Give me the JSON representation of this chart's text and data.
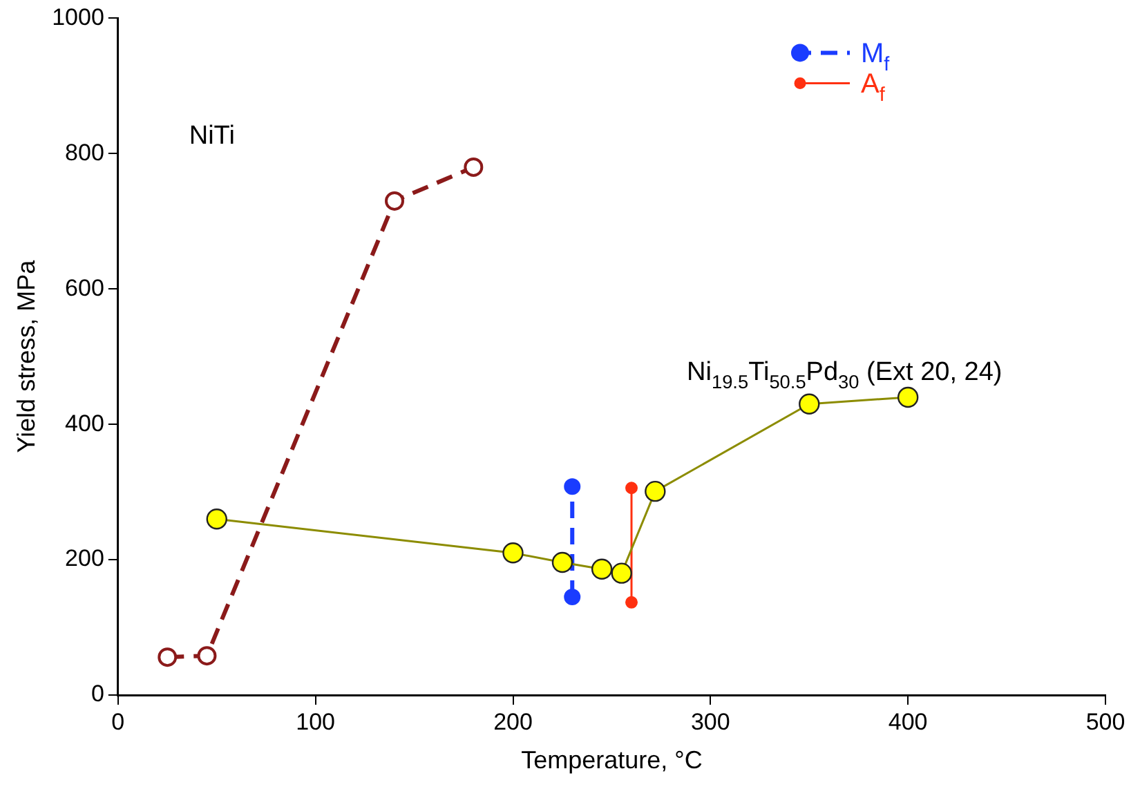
{
  "chart_data": {
    "type": "line",
    "xlabel": "Temperature, °C",
    "ylabel": "Yield stress, MPa",
    "xlim": [
      0,
      500
    ],
    "xticks": [
      0,
      100,
      200,
      300,
      400,
      500
    ],
    "ylim": [
      0,
      1000
    ],
    "yticks": [
      0,
      200,
      400,
      600,
      800,
      1000
    ],
    "grid": false,
    "legend": "top right",
    "series": [
      {
        "color": "#8b1a1a",
        "line_style": "dashed",
        "marker": "circle",
        "x": [
          25,
          45,
          140,
          180
        ],
        "values": [
          56,
          58,
          730,
          780
        ]
      },
      {
        "color": "#ffff00",
        "line_style": "solid",
        "marker": "circle",
        "x": [
          50,
          200,
          225,
          245,
          255,
          272,
          350,
          400
        ],
        "values": [
          260,
          210,
          196,
          186,
          180,
          301,
          430,
          440
        ]
      },
      {
        "name": "M$_{f}$",
        "color": "#1a3cff",
        "line_style": "dashed",
        "marker": "circle",
        "x": [
          230,
          230
        ],
        "values": [
          145,
          308
        ]
      },
      {
        "name": "A$_{f}$",
        "color": "#ff3010",
        "line_style": "solid",
        "marker": "circle",
        "x": [
          260,
          260
        ],
        "values": [
          137,
          306
        ]
      }
    ],
    "annotations": [
      "NiTi",
      "Ni$_{19.5}$Ti$_{50.5}$Pd$_{30}$ (Ext 20, 24)"
    ]
  }
}
